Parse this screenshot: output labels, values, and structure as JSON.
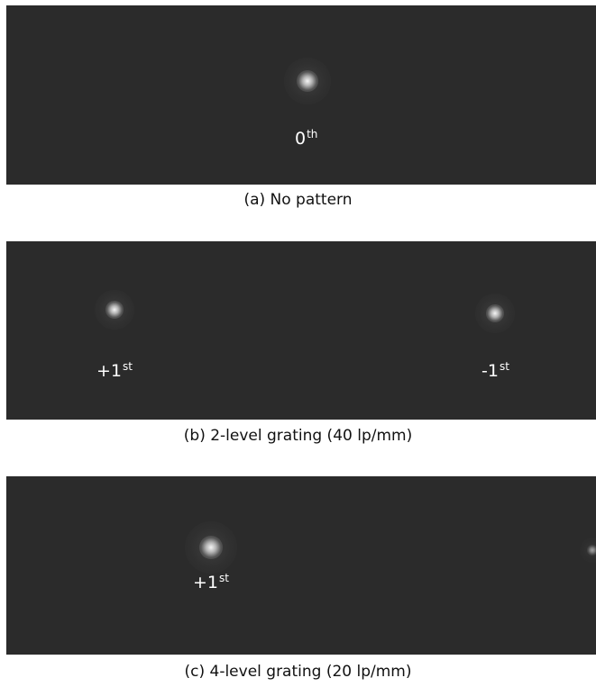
{
  "panels": {
    "a": {
      "caption": "(a) No pattern",
      "orders": [
        {
          "base": "0",
          "sup": "th"
        }
      ]
    },
    "b": {
      "caption": "(b) 2-level grating (40 lp/mm)",
      "orders": [
        {
          "base": "+1",
          "sup": "st"
        },
        {
          "base": "-1",
          "sup": "st"
        }
      ]
    },
    "c": {
      "caption": "(c) 4-level grating (20 lp/mm)",
      "orders": [
        {
          "base": "+1",
          "sup": "st"
        }
      ]
    }
  },
  "colors": {
    "panel_background": "#2b2b2b",
    "label_text": "#ffffff",
    "caption_text": "#111111"
  }
}
